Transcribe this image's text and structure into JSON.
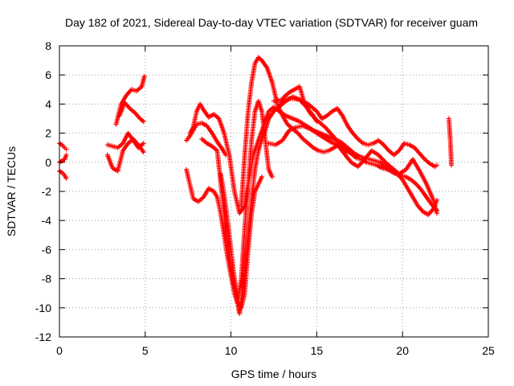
{
  "chart_data": {
    "type": "scatter",
    "title": "Day 182 of 2021, Sidereal Day-to-day VTEC variation (SDTVAR) for receiver guam",
    "xlabel": "GPS time / hours",
    "ylabel": "SDTVAR / TECUs",
    "xlim": [
      0,
      25
    ],
    "ylim": [
      -12,
      8
    ],
    "xticks": [
      0,
      5,
      10,
      15,
      20,
      25
    ],
    "yticks": [
      -12,
      -10,
      -8,
      -6,
      -4,
      -2,
      0,
      2,
      4,
      6,
      8
    ],
    "xtick_labels": [
      "0",
      "5",
      "10",
      "15",
      "20",
      "25"
    ],
    "ytick_labels": [
      "-12",
      "-10",
      "-8",
      "-6",
      "-4",
      "-2",
      "0",
      "2",
      "4",
      "6",
      "8"
    ],
    "grid": true,
    "marker": "+",
    "color": "#ff0000",
    "series": [
      {
        "name": "s1",
        "x": [
          0.0,
          0.15,
          0.3,
          0.4
        ],
        "y": [
          1.3,
          1.2,
          1.0,
          0.9
        ]
      },
      {
        "name": "s2",
        "x": [
          0.0,
          0.15,
          0.3,
          0.4
        ],
        "y": [
          0.0,
          0.1,
          0.2,
          0.5
        ]
      },
      {
        "name": "s3",
        "x": [
          0.0,
          0.15,
          0.3,
          0.4
        ],
        "y": [
          -0.6,
          -0.7,
          -0.9,
          -1.1
        ]
      },
      {
        "name": "s4",
        "x": [
          2.8,
          3.1,
          3.4,
          3.7,
          4.0,
          4.3,
          4.6,
          4.9
        ],
        "y": [
          0.5,
          -0.4,
          -0.6,
          0.8,
          1.3,
          1.6,
          1.2,
          0.7
        ]
      },
      {
        "name": "s5",
        "x": [
          2.8,
          3.1,
          3.4,
          3.7,
          4.0,
          4.3,
          4.6,
          4.9
        ],
        "y": [
          1.2,
          1.1,
          1.0,
          1.3,
          2.0,
          1.5,
          1.0,
          1.3
        ]
      },
      {
        "name": "s6",
        "x": [
          3.3,
          3.6,
          3.9,
          4.2,
          4.5,
          4.8,
          4.95
        ],
        "y": [
          2.6,
          4.0,
          4.6,
          5.0,
          4.9,
          5.2,
          5.9
        ]
      },
      {
        "name": "s7",
        "x": [
          3.5,
          3.8,
          4.1,
          4.4,
          4.7,
          4.9
        ],
        "y": [
          3.2,
          4.1,
          3.7,
          3.4,
          3.0,
          2.8
        ]
      },
      {
        "name": "s8",
        "x": [
          7.4,
          7.6,
          7.8,
          8.0,
          8.3,
          8.6,
          8.9,
          9.2,
          9.5,
          9.7
        ],
        "y": [
          1.5,
          1.8,
          2.2,
          2.6,
          2.7,
          2.5,
          2.0,
          1.4,
          0.9,
          0.5
        ]
      },
      {
        "name": "s9",
        "x": [
          7.6,
          7.8,
          8.0,
          8.2,
          8.4,
          8.7,
          9.0,
          9.3,
          9.6,
          9.9,
          10.2,
          10.5,
          10.8,
          11.0,
          11.3,
          11.6,
          11.9,
          12.2,
          12.5,
          12.8,
          13.2,
          13.6,
          14.0,
          14.4,
          14.8,
          15.2,
          15.6,
          16.0,
          16.4,
          16.8,
          17.2
        ],
        "y": [
          2.0,
          2.4,
          3.5,
          4.0,
          3.6,
          3.1,
          3.3,
          3.0,
          2.0,
          0.5,
          -2.0,
          -3.5,
          -3.0,
          -1.5,
          0.5,
          1.5,
          2.5,
          3.5,
          3.8,
          3.5,
          3.2,
          3.0,
          2.8,
          2.5,
          2.2,
          2.0,
          1.8,
          1.6,
          1.4,
          1.0,
          0.5
        ]
      },
      {
        "name": "s10",
        "x": [
          7.4,
          7.6,
          7.8,
          8.1,
          8.4,
          8.7,
          9.0,
          9.2,
          9.4,
          9.6,
          9.8,
          10.0,
          10.2,
          10.4,
          10.5,
          10.6,
          10.8,
          11.0,
          11.2,
          11.4,
          11.6,
          11.8,
          12.0,
          12.2,
          12.5,
          12.8,
          13.1,
          13.4,
          13.7,
          14.0,
          14.3,
          14.6,
          14.9,
          15.2,
          15.5,
          15.8,
          16.1,
          16.4,
          16.7,
          17.0,
          17.3,
          17.6,
          17.9,
          18.2,
          18.5,
          18.8,
          19.1,
          19.4,
          19.7,
          20.0,
          20.3,
          20.6,
          20.9,
          21.2,
          21.5,
          21.8,
          22.0
        ],
        "y": [
          -0.5,
          -1.5,
          -2.5,
          -2.7,
          -2.4,
          -1.8,
          -2.0,
          -2.4,
          -3.5,
          -5.0,
          -6.5,
          -7.8,
          -9.0,
          -9.8,
          -10.4,
          -9.5,
          -7.5,
          -5.0,
          -2.5,
          -0.5,
          0.8,
          1.6,
          2.2,
          3.0,
          3.5,
          3.8,
          4.5,
          4.8,
          5.0,
          5.2,
          4.0,
          3.4,
          3.0,
          2.7,
          2.4,
          2.0,
          1.6,
          1.2,
          0.8,
          0.6,
          0.3,
          0.2,
          0.0,
          -0.1,
          -0.2,
          -0.4,
          -0.5,
          -0.6,
          -0.8,
          -1.2,
          -1.8,
          -2.4,
          -3.0,
          -3.4,
          -3.6,
          -3.2,
          -2.6
        ]
      },
      {
        "name": "s11",
        "x": [
          8.3,
          8.6,
          8.9,
          9.2,
          9.5,
          9.8,
          10.0,
          10.2,
          10.4,
          10.6,
          10.8,
          11.0,
          11.2,
          11.4,
          11.6,
          11.8,
          12.0,
          12.2,
          12.4
        ],
        "y": [
          1.6,
          1.3,
          1.1,
          0.8,
          -2.5,
          -5.5,
          -7.2,
          -8.6,
          -9.4,
          -8.0,
          -4.5,
          -1.5,
          1.5,
          3.5,
          4.2,
          3.5,
          1.5,
          -0.5,
          -1.0
        ]
      },
      {
        "name": "s12",
        "x": [
          9.4,
          9.6,
          9.8,
          10.0,
          10.2,
          10.4,
          10.6,
          10.8,
          11.0,
          11.2,
          11.4,
          11.6,
          11.8
        ],
        "y": [
          -0.8,
          -2.2,
          -4.0,
          -6.0,
          -8.0,
          -9.6,
          -10.0,
          -9.0,
          -6.0,
          -3.5,
          -2.0,
          -1.5,
          -1.0
        ]
      },
      {
        "name": "s13",
        "x": [
          10.6,
          10.8,
          11.0,
          11.2,
          11.4,
          11.6,
          11.8,
          12.1,
          12.4,
          12.7,
          13.0,
          13.3,
          13.6,
          13.9,
          14.2,
          14.5,
          14.8,
          15.1,
          15.4,
          15.7,
          16.0,
          16.3,
          16.6,
          16.9,
          17.2,
          17.5,
          17.8,
          18.1,
          18.4,
          18.7,
          19.0,
          19.3,
          19.6,
          19.9,
          20.2,
          20.5,
          20.8,
          21.1,
          21.4,
          21.7,
          22.0
        ],
        "y": [
          -3.0,
          0.5,
          3.5,
          5.5,
          6.8,
          7.2,
          7.0,
          6.5,
          5.5,
          4.0,
          3.2,
          2.6,
          2.3,
          2.0,
          1.6,
          1.3,
          1.0,
          0.8,
          0.7,
          0.8,
          1.0,
          1.2,
          1.1,
          0.9,
          0.6,
          0.4,
          0.3,
          0.2,
          0.1,
          0.0,
          -0.3,
          -0.6,
          -0.8,
          -0.9,
          -1.0,
          -1.2,
          -1.5,
          -1.9,
          -2.4,
          -2.9,
          -3.3
        ]
      },
      {
        "name": "s14",
        "x": [
          12.2,
          12.6,
          13.0,
          13.4,
          13.8,
          14.2,
          14.6,
          15.0,
          15.4,
          15.8,
          16.2,
          16.6,
          17.0,
          17.4,
          17.8,
          18.2,
          18.6,
          19.0,
          19.4,
          19.8,
          20.2,
          20.6,
          21.0,
          21.4,
          21.8,
          22.0
        ],
        "y": [
          1.3,
          1.2,
          1.5,
          2.2,
          2.4,
          2.5,
          2.3,
          2.0,
          1.7,
          1.4,
          1.2,
          0.6,
          0.0,
          -0.3,
          0.2,
          0.8,
          0.5,
          0.0,
          -0.4,
          -0.8,
          -0.5,
          0.2,
          -0.6,
          -1.5,
          -2.6,
          -3.5
        ]
      },
      {
        "name": "s15",
        "x": [
          12.5,
          13.0,
          13.5,
          14.0,
          14.5,
          15.0,
          15.3,
          15.6,
          15.9,
          16.2,
          16.5,
          16.8,
          17.1,
          17.4,
          17.7,
          18.0,
          18.3,
          18.6,
          18.9,
          19.2,
          19.5,
          19.8,
          20.1,
          20.4,
          20.7,
          21.0,
          21.3,
          21.6,
          21.9,
          22.0
        ],
        "y": [
          4.2,
          4.3,
          4.4,
          4.3,
          4.0,
          3.5,
          3.0,
          3.2,
          3.5,
          3.7,
          3.2,
          2.5,
          2.0,
          1.6,
          1.3,
          1.2,
          1.3,
          1.5,
          1.2,
          0.8,
          0.5,
          0.8,
          1.3,
          1.2,
          1.0,
          0.6,
          0.2,
          -0.1,
          -0.3,
          -0.2
        ]
      },
      {
        "name": "s16",
        "x": [
          12.8,
          13.2,
          13.6,
          14.0,
          14.4,
          14.8,
          15.0
        ],
        "y": [
          3.8,
          4.2,
          4.5,
          4.3,
          3.8,
          3.2,
          2.8
        ]
      },
      {
        "name": "s17",
        "x": [
          22.7,
          22.75,
          22.8,
          22.85
        ],
        "y": [
          3.0,
          2.2,
          1.2,
          -0.2
        ]
      }
    ]
  }
}
